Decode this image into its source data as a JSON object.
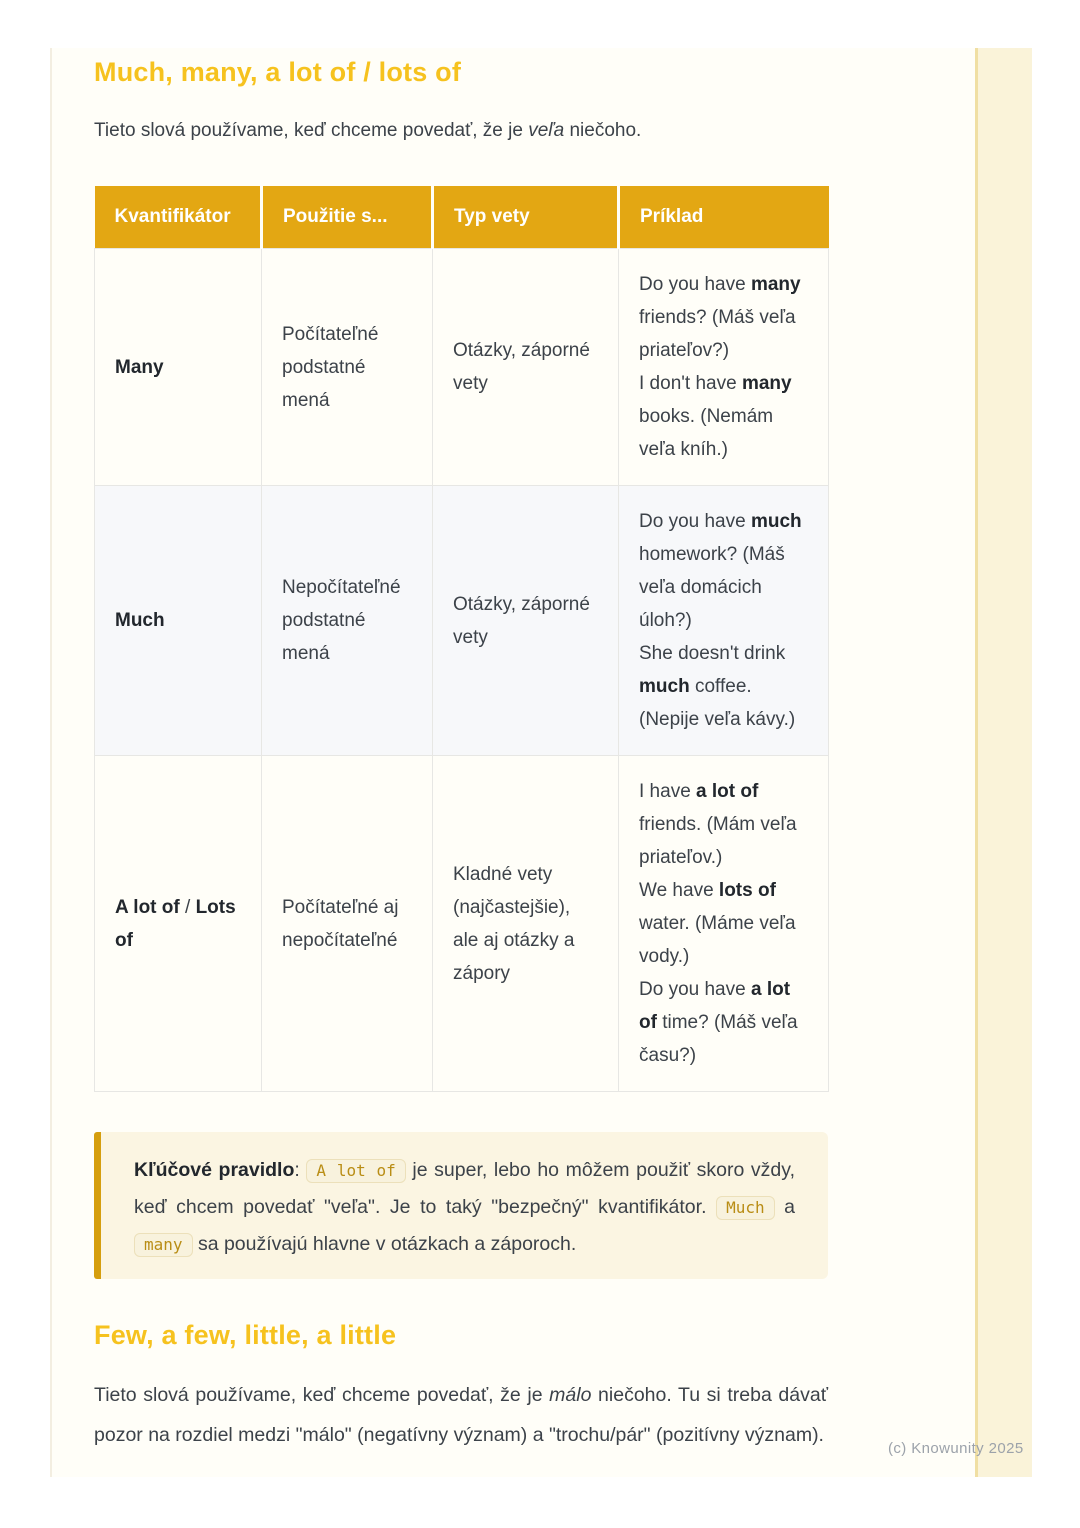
{
  "page": {
    "watermark": "(c) Knowunity 2025"
  },
  "colors": {
    "accent_gold": "#F6C21E",
    "table_header_bg": "#E3A713",
    "table_header_text": "#FFFFFF",
    "body_text": "#3C4249",
    "row_alt_bg": "#F7F8FA",
    "callout_bg": "#FBF5E2",
    "callout_border": "#D59E0E",
    "chip_text": "#B98D15",
    "side_stripe": "#FAF3D9",
    "watermark_text": "#9CA2AA"
  },
  "section1": {
    "title": "Much, many, a lot of / lots of",
    "intro": [
      {
        "t": "Tieto slová používame, keď chceme povedať, že je "
      },
      {
        "t": "veľa",
        "i": 1
      },
      {
        "t": " niečoho."
      }
    ]
  },
  "table": {
    "headers": [
      "Kvantifikátor",
      "Použitie s...",
      "Typ vety",
      "Príklad"
    ],
    "rows": [
      {
        "quantifier": [
          {
            "t": "Many",
            "b": 1
          }
        ],
        "usage": "Počítateľné podstatné mená",
        "type": "Otázky, záporné vety",
        "example": [
          [
            {
              "t": "Do you have "
            },
            {
              "t": "many",
              "b": 1
            },
            {
              "t": " friends? (Máš veľa priateľov?)"
            }
          ],
          [
            {
              "t": "I don't have "
            },
            {
              "t": "many",
              "b": 1
            },
            {
              "t": " books. (Nemám veľa kníh.)"
            }
          ]
        ]
      },
      {
        "quantifier": [
          {
            "t": "Much",
            "b": 1
          }
        ],
        "usage": "Nepočítateľné podstatné mená",
        "type": "Otázky, záporné vety",
        "example": [
          [
            {
              "t": "Do you have "
            },
            {
              "t": "much",
              "b": 1
            },
            {
              "t": " homework? (Máš veľa domácich úloh?)"
            }
          ],
          [
            {
              "t": "She doesn't drink "
            },
            {
              "t": "much",
              "b": 1
            },
            {
              "t": " coffee. (Nepije veľa kávy.)"
            }
          ]
        ]
      },
      {
        "quantifier": [
          {
            "t": "A lot of",
            "b": 1
          },
          {
            "t": " / "
          },
          {
            "t": "Lots of",
            "b": 1
          }
        ],
        "usage": "Počítateľné aj nepočítateľné",
        "type": "Kladné vety (najčastejšie), ale aj otázky a zápory",
        "example": [
          [
            {
              "t": "I have "
            },
            {
              "t": "a lot of",
              "b": 1
            },
            {
              "t": " friends. (Mám veľa priateľov.)"
            }
          ],
          [
            {
              "t": "We have "
            },
            {
              "t": "lots of",
              "b": 1
            },
            {
              "t": " water. (Máme veľa vody.)"
            }
          ],
          [
            {
              "t": "Do you have "
            },
            {
              "t": "a lot of",
              "b": 1
            },
            {
              "t": " time? (Máš veľa času?)"
            }
          ]
        ]
      }
    ]
  },
  "callout": {
    "segments": [
      {
        "t": "Kľúčové pravidlo",
        "b": 1
      },
      {
        "t": ": "
      },
      {
        "t": "A lot of",
        "code": 1
      },
      {
        "t": " je super, lebo ho môžem použiť skoro vždy, keď chcem povedať \"veľa\". Je to taký \"bezpečný\" kvantifikátor. "
      },
      {
        "t": "Much",
        "code": 1
      },
      {
        "t": " a "
      },
      {
        "t": "many",
        "code": 1
      },
      {
        "t": " sa používajú hlavne v otázkach a záporoch."
      }
    ]
  },
  "section2": {
    "title": "Few, a few, little, a little",
    "intro": [
      {
        "t": "Tieto slová používame, keď chceme povedať, že je "
      },
      {
        "t": "málo",
        "i": 1
      },
      {
        "t": " niečoho. Tu si treba dávať pozor na rozdiel medzi \"málo\" (negatívny význam) a \"trochu/pár\" (pozitívny význam)."
      }
    ]
  }
}
